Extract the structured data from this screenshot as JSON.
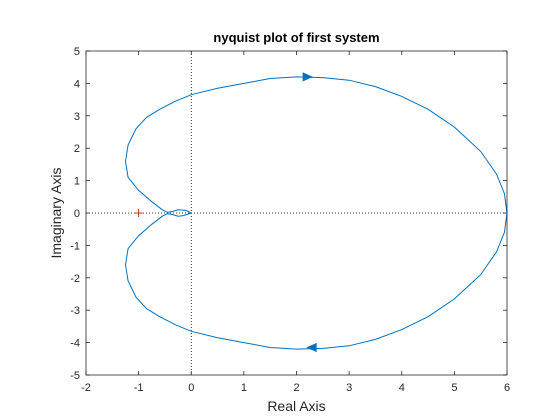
{
  "chart_data": {
    "type": "line",
    "title": "nyquist plot of first system",
    "xlabel": "Real Axis",
    "ylabel": "Imaginary Axis",
    "xlim": [
      -2,
      6
    ],
    "ylim": [
      -5,
      5
    ],
    "xticks": [
      -2,
      -1,
      0,
      1,
      2,
      3,
      4,
      5,
      6
    ],
    "yticks": [
      -5,
      -4,
      -3,
      -2,
      -1,
      0,
      1,
      2,
      3,
      4,
      5
    ],
    "grid": false,
    "box": true,
    "reference_lines": {
      "x": 0,
      "y": 0,
      "style": "dotted"
    },
    "critical_point": {
      "x": -1,
      "y": 0,
      "marker": "+",
      "color": "#d62728"
    },
    "series": [
      {
        "color": "#0072bd",
        "x": [
          6.0,
          5.95,
          5.8,
          5.5,
          5.0,
          4.5,
          4.0,
          3.5,
          3.0,
          2.5,
          2.0,
          1.5,
          1.0,
          0.5,
          0.0,
          -0.3,
          -0.6,
          -0.85,
          -1.05,
          -1.2,
          -1.25,
          -1.2,
          -1.0,
          -0.75,
          -0.55,
          -0.45,
          -0.35,
          -0.25,
          -0.15,
          0.0,
          -0.1,
          -0.25,
          -0.35,
          -0.45,
          -0.55,
          -0.75,
          -1.0,
          -1.2,
          -1.25,
          -1.2,
          -1.05,
          -0.85,
          -0.6,
          -0.3,
          0.0,
          0.5,
          1.0,
          1.5,
          2.0,
          2.5,
          3.0,
          3.5,
          4.0,
          4.5,
          5.0,
          5.5,
          5.8,
          5.95,
          6.0
        ],
        "y": [
          0.0,
          -0.6,
          -1.2,
          -1.9,
          -2.65,
          -3.2,
          -3.6,
          -3.9,
          -4.1,
          -4.18,
          -4.2,
          -4.15,
          -4.0,
          -3.85,
          -3.65,
          -3.45,
          -3.2,
          -2.95,
          -2.6,
          -2.1,
          -1.6,
          -1.1,
          -0.7,
          -0.35,
          -0.1,
          -0.02,
          -0.05,
          -0.1,
          -0.08,
          0.0,
          0.08,
          0.1,
          0.05,
          0.02,
          0.1,
          0.35,
          0.7,
          1.1,
          1.6,
          2.1,
          2.6,
          2.95,
          3.2,
          3.45,
          3.65,
          3.85,
          4.0,
          4.15,
          4.2,
          4.18,
          4.1,
          3.9,
          3.6,
          3.2,
          2.65,
          1.9,
          1.2,
          0.6,
          0.0
        ]
      }
    ],
    "direction_arrows": [
      {
        "x": 2.2,
        "y": 4.2,
        "direction": "right"
      },
      {
        "x": 2.3,
        "y": -4.15,
        "direction": "left"
      }
    ]
  }
}
